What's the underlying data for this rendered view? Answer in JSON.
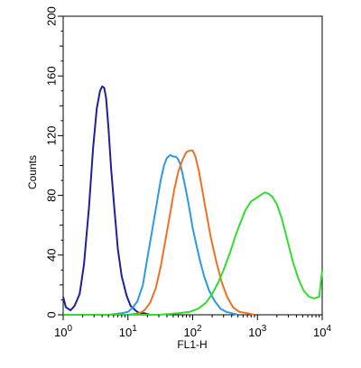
{
  "chart_data": {
    "type": "line",
    "xlabel": "FL1-H",
    "ylabel": "Counts",
    "x_scale": "log",
    "xlim": [
      1,
      10000
    ],
    "ylim": [
      0,
      200
    ],
    "x_ticks": [
      {
        "value": 1,
        "base": "10",
        "exp": "0"
      },
      {
        "value": 10,
        "base": "10",
        "exp": "1"
      },
      {
        "value": 100,
        "base": "10",
        "exp": "2"
      },
      {
        "value": 1000,
        "base": "10",
        "exp": "3"
      },
      {
        "value": 10000,
        "base": "10",
        "exp": "4"
      }
    ],
    "y_ticks": [
      0,
      40,
      80,
      120,
      160,
      200
    ],
    "grid": false,
    "legend": "none",
    "series": [
      {
        "color": "#1f1fa0",
        "x": [
          1.0,
          1.1,
          1.3,
          1.5,
          1.8,
          2.1,
          2.5,
          2.9,
          3.3,
          3.7,
          4.0,
          4.3,
          4.6,
          5.0,
          5.5,
          6.2,
          7.0,
          8.0,
          9.5,
          11,
          13,
          15,
          18,
          22,
          26,
          30
        ],
        "y": [
          12,
          5,
          3,
          6,
          14,
          34,
          72,
          112,
          138,
          150,
          153,
          152,
          145,
          125,
          98,
          70,
          44,
          26,
          13,
          6,
          3,
          1,
          1,
          0,
          0,
          0
        ]
      },
      {
        "color": "#2b9be0",
        "x": [
          1,
          5,
          8,
          10,
          12,
          14,
          17,
          20,
          24,
          28,
          32,
          36,
          40,
          45,
          50,
          55,
          60,
          65,
          70,
          80,
          90,
          100,
          115,
          130,
          150,
          180,
          220,
          270,
          330,
          400,
          500
        ],
        "y": [
          0,
          0,
          1,
          2,
          5,
          9,
          20,
          38,
          58,
          75,
          90,
          100,
          105,
          107,
          106,
          106,
          104,
          100,
          94,
          82,
          70,
          58,
          46,
          36,
          26,
          16,
          9,
          4,
          2,
          1,
          0
        ]
      },
      {
        "color": "#f36f21",
        "x": [
          1,
          10,
          15,
          18,
          22,
          27,
          32,
          38,
          45,
          52,
          60,
          70,
          80,
          90,
          100,
          110,
          125,
          140,
          160,
          190,
          230,
          280,
          340,
          420,
          520,
          700,
          900
        ],
        "y": [
          0,
          0,
          1,
          3,
          8,
          18,
          32,
          50,
          68,
          84,
          96,
          104,
          109,
          110,
          110,
          106,
          96,
          84,
          70,
          52,
          36,
          22,
          12,
          5,
          2,
          1,
          0
        ]
      },
      {
        "color": "#2ee02e",
        "x": [
          1,
          30,
          60,
          90,
          120,
          160,
          200,
          250,
          300,
          380,
          450,
          550,
          650,
          800,
          950,
          1100,
          1300,
          1500,
          1700,
          2000,
          2400,
          2900,
          3500,
          4300,
          5200,
          6300,
          7500,
          9000,
          10000
        ],
        "y": [
          0,
          0,
          1,
          2,
          4,
          8,
          14,
          22,
          30,
          42,
          52,
          62,
          70,
          76,
          78,
          80,
          82,
          81,
          79,
          74,
          64,
          50,
          36,
          24,
          16,
          12,
          11,
          12,
          30
        ]
      }
    ]
  }
}
